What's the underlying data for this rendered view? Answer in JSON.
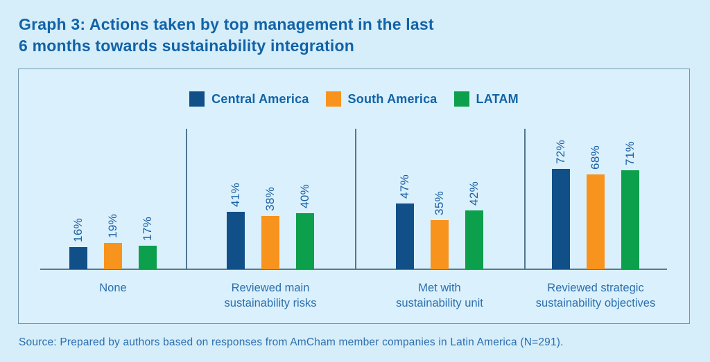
{
  "title": "Graph 3: Actions taken by top management in the last\n6 months towards sustainability integration",
  "source": "Source: Prepared by authors based on responses from AmCham member companies in Latin America (N=291).",
  "colors": {
    "background": "#d6edfa",
    "panel_background": "#daf0fc",
    "panel_border": "#6e96af",
    "title_text": "#1263a7",
    "label_text": "#2b6fae",
    "value_text": "#1b5fa3",
    "axis_line": "#567a8e",
    "central_america": "#114f88",
    "south_america": "#f8941d",
    "latam": "#0c9f4c"
  },
  "chart_data": {
    "type": "bar",
    "title": "Graph 3: Actions taken by top management in the last 6 months towards sustainability integration",
    "categories": [
      "None",
      "Reviewed main\nsustainability risks",
      "Met with\nsustainability unit",
      "Reviewed strategic\nsustainability objectives"
    ],
    "series": [
      {
        "name": "Central America",
        "color": "#114f88",
        "values": [
          16,
          41,
          47,
          72
        ]
      },
      {
        "name": "South America",
        "color": "#f8941d",
        "values": [
          19,
          38,
          35,
          68
        ]
      },
      {
        "name": "LATAM",
        "color": "#0c9f4c",
        "values": [
          17,
          40,
          42,
          71
        ]
      }
    ],
    "value_suffix": "%",
    "xlabel": "",
    "ylabel": "",
    "ylim": [
      0,
      100
    ],
    "grid": false,
    "legend_position": "top-center",
    "value_labels": "rotated-90-above-bars"
  }
}
